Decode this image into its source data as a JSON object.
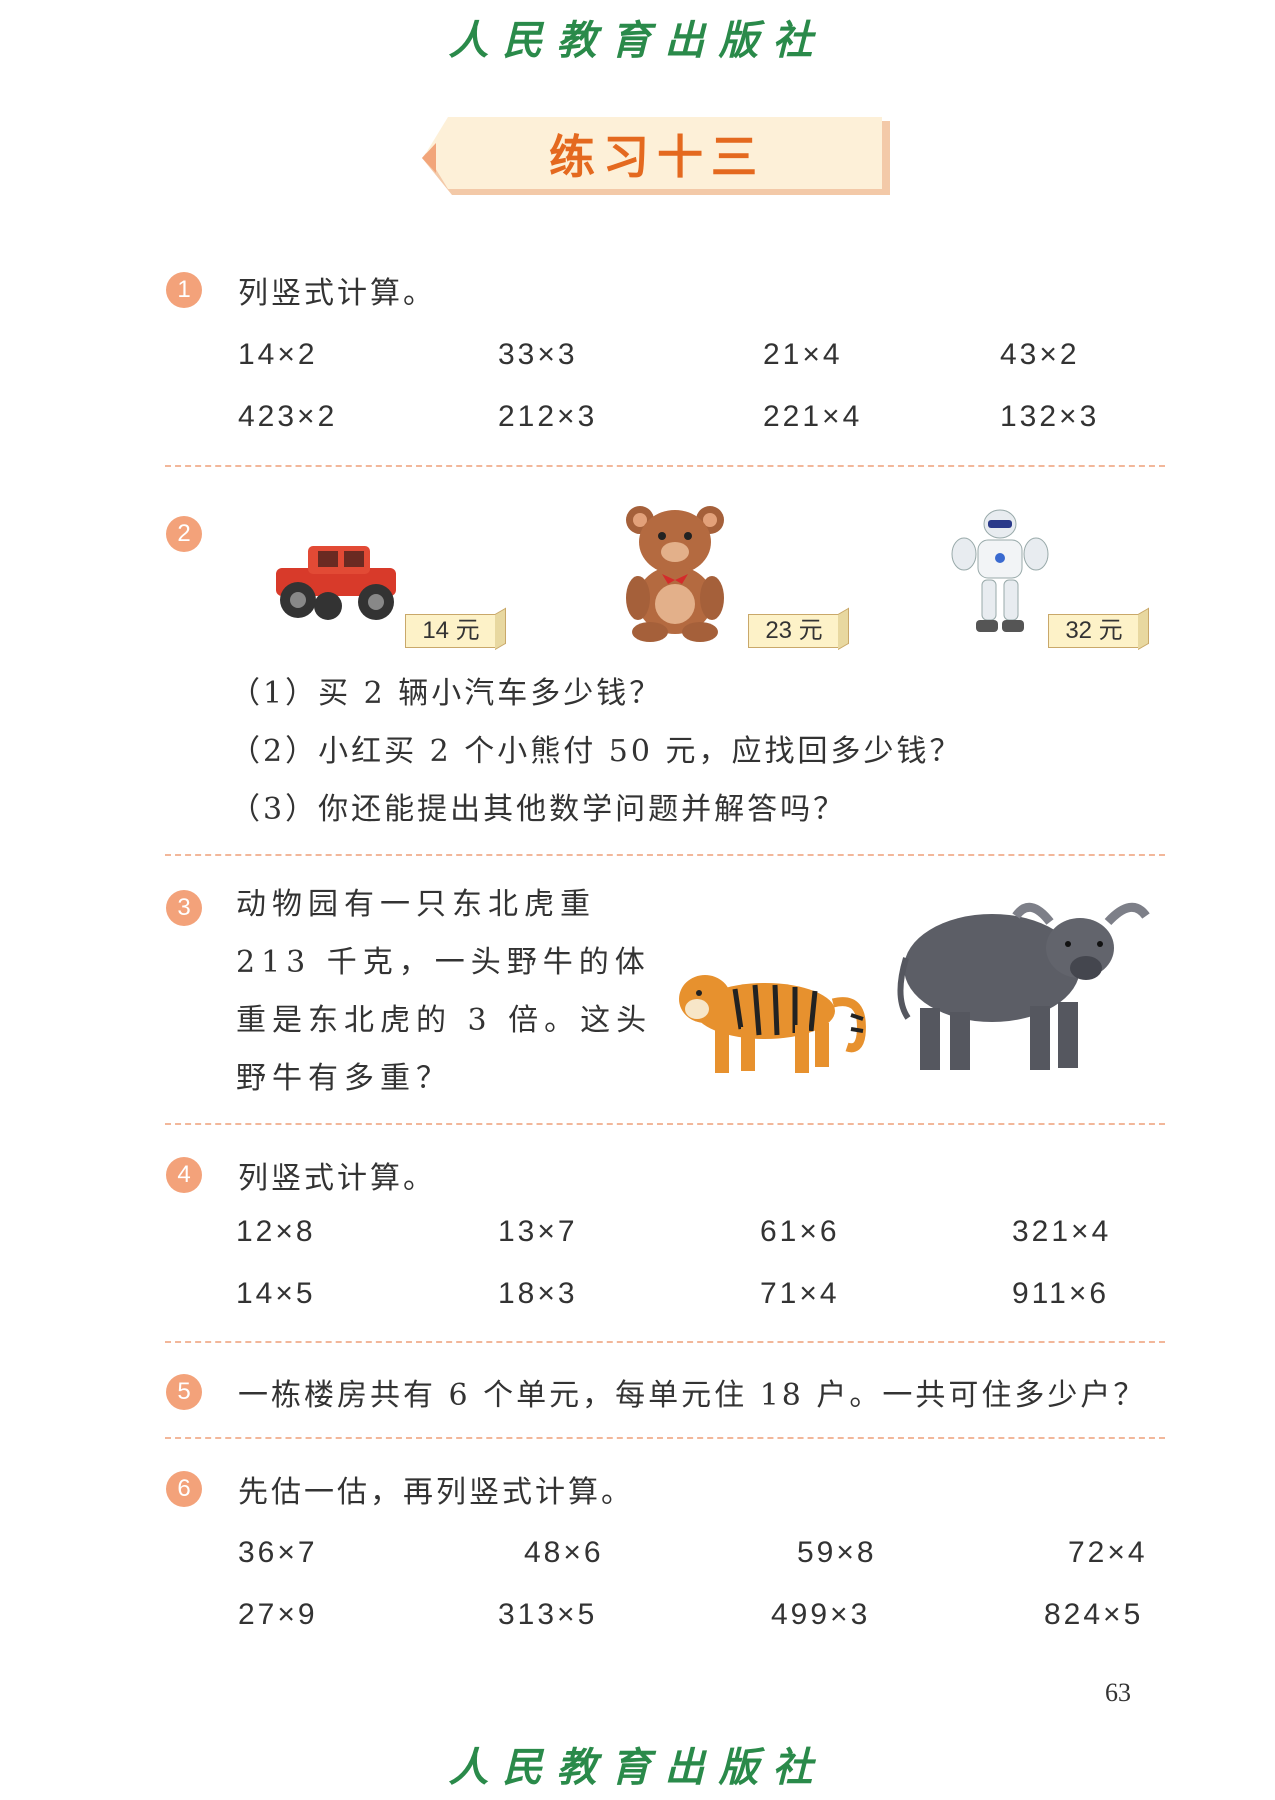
{
  "publisher": "人民教育出版社",
  "title": "练习十三",
  "page_number": "63",
  "colors": {
    "accent": "#e4691f",
    "badge": "#f3a27a",
    "divider": "#f2b79a",
    "publisher": "#2a8a4a"
  },
  "q1": {
    "num": "1",
    "prompt": "列竖式计算。",
    "row1": [
      "14×2",
      "33×3",
      "21×4",
      "43×2"
    ],
    "row2": [
      "423×2",
      "212×3",
      "221×4",
      "132×3"
    ]
  },
  "q2": {
    "num": "2",
    "items": [
      {
        "icon": "toy-car-icon",
        "price": "14 元"
      },
      {
        "icon": "teddy-bear-icon",
        "price": "23 元"
      },
      {
        "icon": "robot-icon",
        "price": "32 元"
      }
    ],
    "questions": [
      "（1）买 2 辆小汽车多少钱？",
      "（2）小红买 2 个小熊付 50 元，应找回多少钱？",
      "（3）你还能提出其他数学问题并解答吗？"
    ]
  },
  "q3": {
    "num": "3",
    "lines": [
      "动物园有一只东北虎重",
      "213 千克，一头野牛的体",
      "重是东北虎的 3 倍。这头",
      "野牛有多重？"
    ],
    "images": [
      "tiger-icon",
      "buffalo-icon"
    ]
  },
  "q4": {
    "num": "4",
    "prompt": "列竖式计算。",
    "row1": [
      "12×8",
      "13×7",
      "61×6",
      "321×4"
    ],
    "row2": [
      "14×5",
      "18×3",
      "71×4",
      "911×6"
    ]
  },
  "q5": {
    "num": "5",
    "prompt": "一栋楼房共有 6 个单元，每单元住 18 户。一共可住多少户？"
  },
  "q6": {
    "num": "6",
    "prompt": "先估一估，再列竖式计算。",
    "row1": [
      "36×7",
      "48×6",
      "59×8",
      "72×4"
    ],
    "row2": [
      "27×9",
      "313×5",
      "499×3",
      "824×5"
    ]
  }
}
